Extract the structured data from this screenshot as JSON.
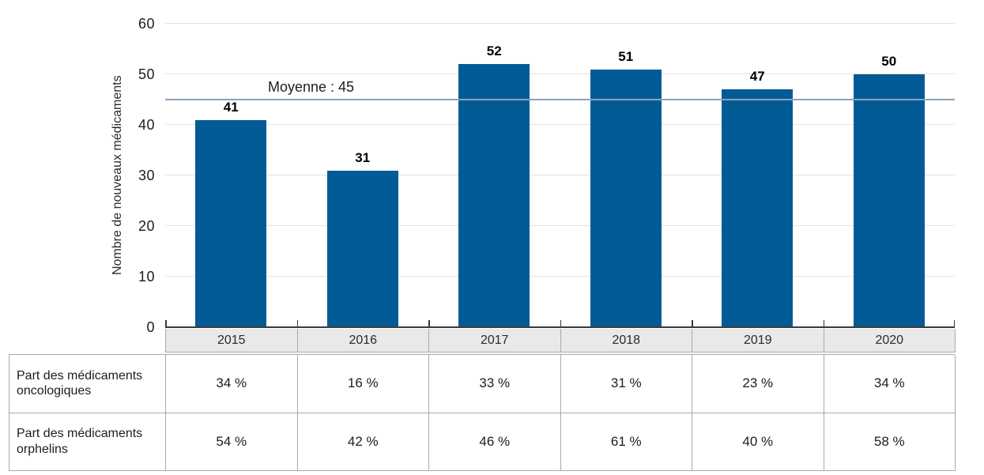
{
  "chart_data": {
    "type": "bar",
    "title": "",
    "categories": [
      "2015",
      "2016",
      "2017",
      "2018",
      "2019",
      "2020"
    ],
    "values": [
      41,
      31,
      52,
      51,
      47,
      50
    ],
    "ylabel": "Nombre de nouveaux médicaments",
    "xlabel": "",
    "ylim": [
      0,
      60
    ],
    "yticks": [
      0,
      10,
      20,
      30,
      40,
      50,
      60
    ],
    "grid": "horizontal",
    "legend_position": "none",
    "average_line": {
      "label": "Moyenne : 45",
      "value": 45
    },
    "colors": {
      "bar": "#035b96",
      "average_line": "#8ba3b8",
      "gridline": "#e2e2e2",
      "axis": "#3a3a3a",
      "header_bg": "#e9e9e9",
      "table_border": "#a9a9a9",
      "text": "#1d1d1d"
    },
    "table": {
      "rows": [
        {
          "label": "Part des médicaments oncologiques",
          "values": [
            "34 %",
            "16 %",
            "33 %",
            "31 %",
            "23 %",
            "34 %"
          ]
        },
        {
          "label": "Part des médicaments orphelins",
          "values": [
            "54 %",
            "42 %",
            "46 %",
            "61 %",
            "40 %",
            "58 %"
          ]
        }
      ]
    }
  }
}
